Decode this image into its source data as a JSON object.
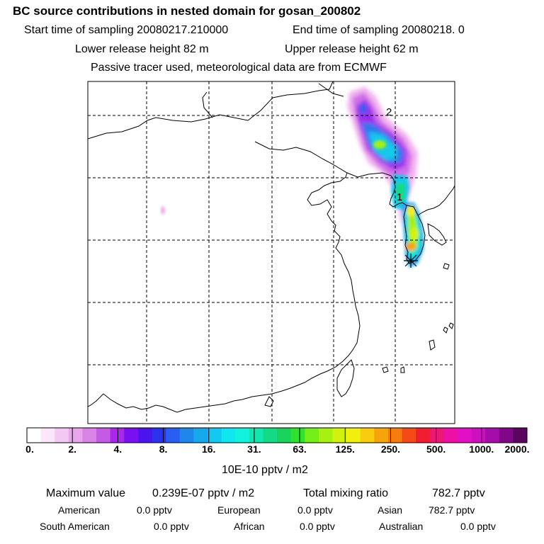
{
  "header": {
    "title": "BC  source contributions in nested domain for gosan_200802",
    "start_time": "Start time of sampling 20080217.210000",
    "end_time": "End time of sampling 20080218.     0",
    "lower_height": "Lower release height   82 m",
    "upper_height": "Upper release height   62 m",
    "tracer_note": "Passive tracer used, meteorological data are from ECMWF"
  },
  "map": {
    "markers": [
      "2",
      "1"
    ]
  },
  "colorbar": {
    "ticks": [
      "0.",
      "2.",
      "4.",
      "8.",
      "16.",
      "31.",
      "63.",
      "125.",
      "250.",
      "500.",
      "1000.",
      "2000."
    ],
    "unit": "10E-10 pptv / m2",
    "colors": [
      "#ffffff",
      "#fbe6fb",
      "#f3c8f3",
      "#e9a6ec",
      "#d983e6",
      "#c45ae6",
      "#a828ee",
      "#7a10f0",
      "#4a14ec",
      "#2a32ee",
      "#2a5df2",
      "#1f86ec",
      "#16a8ec",
      "#12c8ee",
      "#10e6f0",
      "#12f2dc",
      "#14e6b0",
      "#14da86",
      "#18d25a",
      "#2ee22e",
      "#74ee18",
      "#a6f012",
      "#d2f20e",
      "#f2ee0e",
      "#f6cc0c",
      "#f6a40c",
      "#f67c10",
      "#f44a18",
      "#f01e30",
      "#ec1876",
      "#ec10a4",
      "#e010c4",
      "#cc10c0",
      "#a60ca8",
      "#800888",
      "#5a0660"
    ]
  },
  "summary": {
    "max_label": "Maximum value",
    "max_value": "0.239E-07 pptv / m2",
    "total_label": "Total mixing ratio",
    "total_value": "782.7 pptv",
    "regions": [
      {
        "name": "American",
        "value": "0.0 pptv"
      },
      {
        "name": "European",
        "value": "0.0 pptv"
      },
      {
        "name": "Asian",
        "value": "782.7 pptv"
      },
      {
        "name": "South American",
        "value": "0.0 pptv"
      },
      {
        "name": "African",
        "value": "0.0 pptv"
      },
      {
        "name": "Australian",
        "value": "0.0 pptv"
      }
    ]
  }
}
